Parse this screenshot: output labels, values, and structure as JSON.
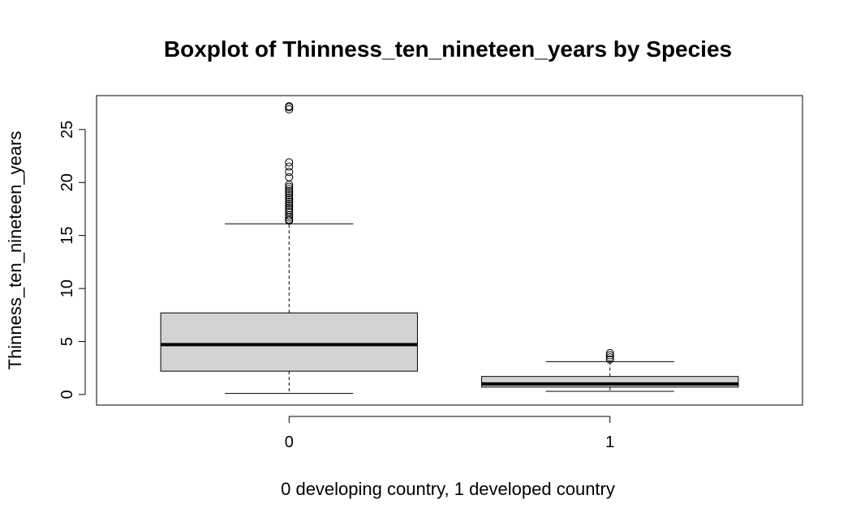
{
  "chart_data": {
    "type": "box",
    "title": "Boxplot of Thinness_ten_nineteen_years by Species",
    "xlabel": "0 developing country, 1 developed country",
    "ylabel": "Thinness_ten_nineteen_years",
    "ylim": [
      -1,
      28.2
    ],
    "yticks": [
      0,
      5,
      10,
      15,
      20,
      25
    ],
    "categories": [
      "0",
      "1"
    ],
    "box_fill": "#d3d3d3",
    "grid": false,
    "boxes": [
      {
        "category": "0",
        "whisker_low": 0.1,
        "q1": 2.2,
        "median": 4.7,
        "q3": 7.7,
        "whisker_high": 16.1,
        "outliers": [
          16.4,
          16.5,
          16.7,
          16.9,
          17.2,
          17.4,
          17.6,
          17.8,
          18.0,
          18.2,
          18.4,
          18.6,
          18.8,
          19.0,
          19.2,
          19.4,
          19.6,
          19.8,
          20.5,
          21.0,
          21.5,
          21.9,
          26.9,
          27.1,
          27.2
        ]
      },
      {
        "category": "1",
        "whisker_low": 0.3,
        "q1": 0.7,
        "median": 1.0,
        "q3": 1.7,
        "whisker_high": 3.1,
        "outliers": [
          3.3,
          3.5,
          3.7,
          3.9
        ]
      }
    ]
  }
}
